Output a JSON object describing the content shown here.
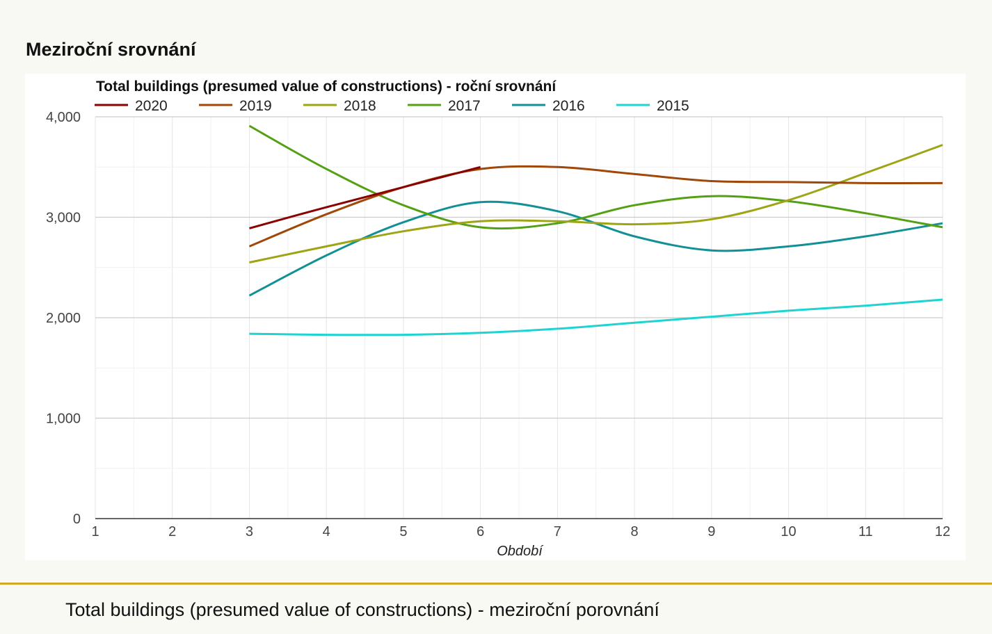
{
  "page": {
    "section_title": "Meziroční srovnání",
    "caption": "Total buildings (presumed value of constructions) - meziroční porovnání"
  },
  "chart_data": {
    "type": "line",
    "title": "Total buildings (presumed value of constructions) - roční srovnání",
    "xlabel": "Období",
    "ylabel": "",
    "x": [
      1,
      2,
      3,
      4,
      5,
      6,
      7,
      8,
      9,
      10,
      11,
      12
    ],
    "x_tick_labels": [
      "1",
      "2",
      "3",
      "4",
      "5",
      "6",
      "7",
      "8",
      "9",
      "10",
      "11",
      "12"
    ],
    "ylim": [
      0,
      4000
    ],
    "y_tick_labels": [
      "0",
      "1,000",
      "2,000",
      "3,000",
      "4,000"
    ],
    "grid": true,
    "legend_position": "top",
    "curve": "smooth",
    "series": [
      {
        "name": "2020",
        "color": "#8b0000",
        "values": [
          null,
          null,
          2890,
          3100,
          3300,
          3500,
          null,
          null,
          null,
          null,
          null,
          null
        ]
      },
      {
        "name": "2019",
        "color": "#a0470a",
        "values": [
          null,
          null,
          2710,
          3030,
          3300,
          3480,
          3500,
          3430,
          3360,
          3350,
          3340,
          3340
        ]
      },
      {
        "name": "2018",
        "color": "#9ea515",
        "values": [
          null,
          null,
          2550,
          2710,
          2860,
          2960,
          2960,
          2930,
          2980,
          3170,
          3440,
          3720
        ]
      },
      {
        "name": "2017",
        "color": "#54a013",
        "values": [
          null,
          null,
          3910,
          3480,
          3120,
          2900,
          2940,
          3120,
          3210,
          3160,
          3040,
          2900
        ]
      },
      {
        "name": "2016",
        "color": "#138f96",
        "values": [
          null,
          null,
          2220,
          2620,
          2950,
          3150,
          3060,
          2810,
          2670,
          2710,
          2810,
          2940
        ]
      },
      {
        "name": "2015",
        "color": "#1ed4d2",
        "values": [
          null,
          null,
          1840,
          1830,
          1830,
          1850,
          1890,
          1950,
          2010,
          2070,
          2120,
          2180
        ]
      }
    ]
  }
}
